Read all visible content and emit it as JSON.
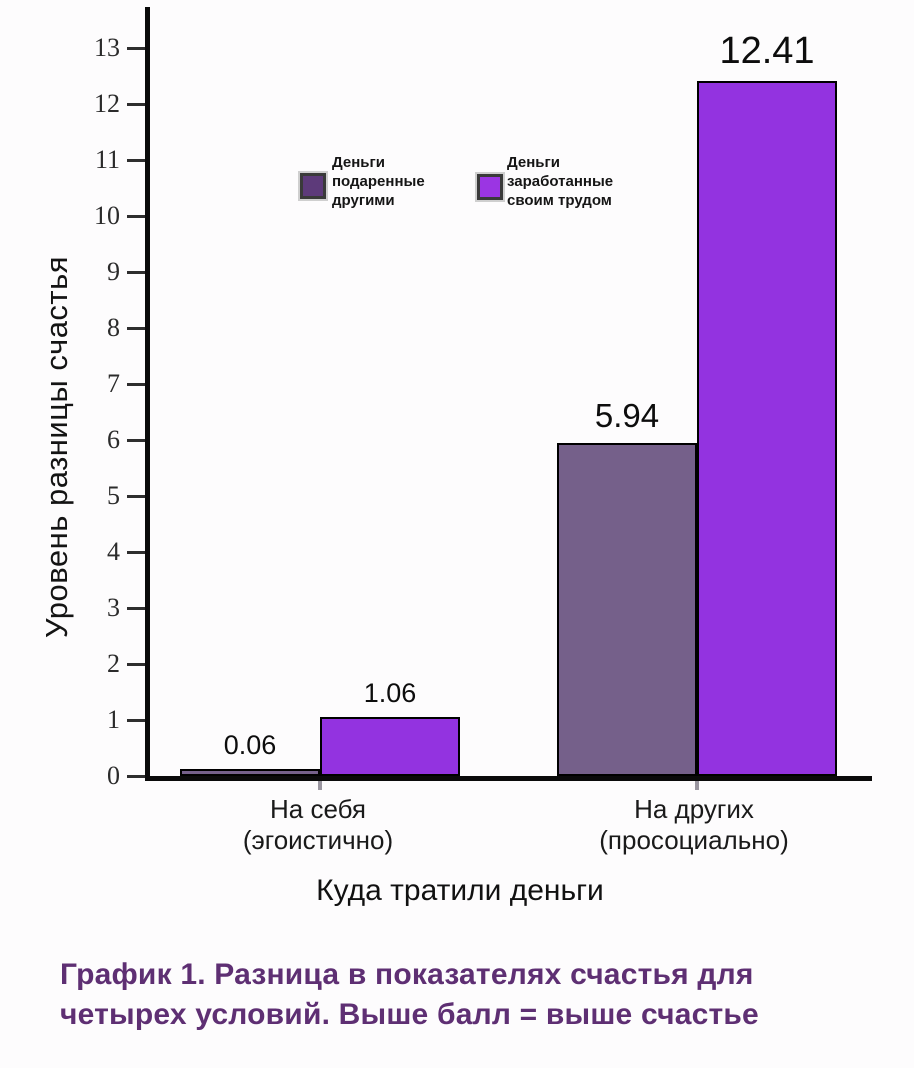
{
  "chart_data": {
    "type": "bar",
    "categories": [
      {
        "line1": "На себя",
        "line2": "(эгоистично)"
      },
      {
        "line1": "На других",
        "line2": "(просоциально)"
      }
    ],
    "series": [
      {
        "name": "Деньги подаренные другими",
        "legend_lines": [
          "Деньги",
          "подаренные",
          "другими"
        ],
        "bar_color": "#75608a",
        "swatch_color": "#5d3a7a",
        "values": [
          0.06,
          5.94
        ],
        "value_labels": [
          "0.06",
          "5.94"
        ]
      },
      {
        "name": "Деньги заработанные своим трудом",
        "legend_lines": [
          "Деньги",
          "заработанные",
          "своим трудом"
        ],
        "bar_color": "#9333e0",
        "swatch_color": "#9b35e3",
        "values": [
          1.06,
          12.41
        ],
        "value_labels": [
          "1.06",
          "12.41"
        ]
      }
    ],
    "xlabel": "Куда тратили деньги",
    "ylabel": "Уровень разницы счастья",
    "yticks": [
      0,
      1,
      2,
      3,
      4,
      5,
      6,
      7,
      8,
      9,
      10,
      11,
      12,
      13
    ],
    "ylim": [
      0,
      13.7
    ],
    "grid": false,
    "legend_position": "inside-upper-left",
    "axis_color": "#0a0a0a"
  },
  "caption": {
    "line1": "График 1. Разница в показателях счастья для",
    "line2": "четырех условий. Выше балл = выше счастье",
    "color": "#5e2f73"
  }
}
